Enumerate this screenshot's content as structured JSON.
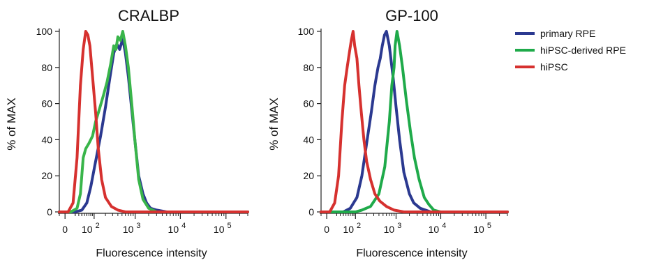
{
  "chart_data": [
    {
      "type": "line",
      "title": "CRALBP",
      "xlabel": "Fluorescence intensity",
      "ylabel": "% of MAX",
      "x_scale": "biexponential",
      "xlim": [
        -10,
        300000
      ],
      "ylim": [
        0,
        100
      ],
      "yticks": [
        0,
        20,
        40,
        60,
        80,
        100
      ],
      "xticks": [
        {
          "value": 0,
          "label": "0",
          "exp": ""
        },
        {
          "value": 100,
          "label": "10",
          "exp": "2"
        },
        {
          "value": 1000,
          "label": "10",
          "exp": "3"
        },
        {
          "value": 10000,
          "label": "10",
          "exp": "4"
        },
        {
          "value": 100000,
          "label": "10",
          "exp": "5"
        }
      ],
      "series": [
        {
          "name": "primary RPE",
          "color": "#2b3990",
          "points": [
            [
              -10,
              0
            ],
            [
              20,
              0
            ],
            [
              40,
              1
            ],
            [
              60,
              5
            ],
            [
              80,
              14
            ],
            [
              110,
              28
            ],
            [
              150,
              42
            ],
            [
              200,
              58
            ],
            [
              260,
              75
            ],
            [
              320,
              88
            ],
            [
              380,
              93
            ],
            [
              440,
              90
            ],
            [
              520,
              96
            ],
            [
              600,
              88
            ],
            [
              700,
              75
            ],
            [
              850,
              55
            ],
            [
              1000,
              38
            ],
            [
              1200,
              20
            ],
            [
              1500,
              10
            ],
            [
              1800,
              5
            ],
            [
              2200,
              2
            ],
            [
              3000,
              1
            ],
            [
              5000,
              0
            ],
            [
              300000,
              0
            ]
          ]
        },
        {
          "name": "hiPSC-derived RPE",
          "color": "#39b54a",
          "points": [
            [
              -10,
              0
            ],
            [
              10,
              0
            ],
            [
              25,
              2
            ],
            [
              35,
              10
            ],
            [
              45,
              30
            ],
            [
              55,
              35
            ],
            [
              70,
              38
            ],
            [
              90,
              42
            ],
            [
              110,
              50
            ],
            [
              140,
              57
            ],
            [
              180,
              65
            ],
            [
              220,
              72
            ],
            [
              270,
              82
            ],
            [
              320,
              92
            ],
            [
              360,
              90
            ],
            [
              400,
              97
            ],
            [
              460,
              95
            ],
            [
              520,
              100
            ],
            [
              600,
              92
            ],
            [
              700,
              80
            ],
            [
              850,
              58
            ],
            [
              1000,
              38
            ],
            [
              1200,
              18
            ],
            [
              1500,
              7
            ],
            [
              2000,
              2
            ],
            [
              3000,
              0
            ],
            [
              300000,
              0
            ]
          ]
        },
        {
          "name": "hiPSC",
          "color": "#d6312f",
          "points": [
            [
              -10,
              0
            ],
            [
              5,
              0
            ],
            [
              15,
              5
            ],
            [
              25,
              30
            ],
            [
              35,
              70
            ],
            [
              45,
              90
            ],
            [
              55,
              100
            ],
            [
              65,
              98
            ],
            [
              75,
              92
            ],
            [
              90,
              75
            ],
            [
              110,
              55
            ],
            [
              130,
              35
            ],
            [
              160,
              18
            ],
            [
              200,
              8
            ],
            [
              280,
              3
            ],
            [
              400,
              1
            ],
            [
              600,
              0
            ],
            [
              300000,
              0
            ]
          ]
        }
      ]
    },
    {
      "type": "line",
      "title": "GP-100",
      "xlabel": "Fluorescence intensity",
      "ylabel": "% of MAX",
      "x_scale": "biexponential",
      "xlim": [
        -10,
        300000
      ],
      "ylim": [
        0,
        100
      ],
      "yticks": [
        0,
        20,
        40,
        60,
        80,
        100
      ],
      "xticks": [
        {
          "value": 0,
          "label": "0",
          "exp": ""
        },
        {
          "value": 100,
          "label": "10",
          "exp": "2"
        },
        {
          "value": 1000,
          "label": "10",
          "exp": "3"
        },
        {
          "value": 10000,
          "label": "10",
          "exp": "4"
        },
        {
          "value": 100000,
          "label": "10",
          "exp": "5"
        }
      ],
      "legend": {
        "position": "top-right",
        "entries": [
          "primary RPE",
          "hiPSC-derived RPE",
          "hiPSC"
        ]
      },
      "series": [
        {
          "name": "primary RPE",
          "color": "#2b3990",
          "points": [
            [
              -10,
              0
            ],
            [
              40,
              0
            ],
            [
              70,
              2
            ],
            [
              110,
              8
            ],
            [
              150,
              20
            ],
            [
              200,
              38
            ],
            [
              260,
              55
            ],
            [
              320,
              70
            ],
            [
              380,
              80
            ],
            [
              430,
              85
            ],
            [
              480,
              92
            ],
            [
              540,
              98
            ],
            [
              600,
              100
            ],
            [
              700,
              92
            ],
            [
              850,
              75
            ],
            [
              1000,
              58
            ],
            [
              1200,
              40
            ],
            [
              1500,
              22
            ],
            [
              2000,
              10
            ],
            [
              2500,
              5
            ],
            [
              3500,
              2
            ],
            [
              6000,
              0
            ],
            [
              300000,
              0
            ]
          ]
        },
        {
          "name": "hiPSC-derived RPE",
          "color": "#1faa4a",
          "points": [
            [
              -10,
              0
            ],
            [
              100,
              0
            ],
            [
              150,
              1
            ],
            [
              250,
              3
            ],
            [
              400,
              10
            ],
            [
              550,
              25
            ],
            [
              700,
              50
            ],
            [
              800,
              70
            ],
            [
              900,
              80
            ],
            [
              950,
              92
            ],
            [
              1050,
              100
            ],
            [
              1200,
              92
            ],
            [
              1400,
              80
            ],
            [
              1700,
              62
            ],
            [
              2100,
              45
            ],
            [
              2600,
              30
            ],
            [
              3300,
              18
            ],
            [
              4300,
              8
            ],
            [
              5500,
              4
            ],
            [
              7000,
              1
            ],
            [
              10000,
              0
            ],
            [
              300000,
              0
            ]
          ]
        },
        {
          "name": "hiPSC",
          "color": "#d6312f",
          "points": [
            [
              -10,
              0
            ],
            [
              5,
              0
            ],
            [
              15,
              5
            ],
            [
              25,
              20
            ],
            [
              35,
              50
            ],
            [
              45,
              70
            ],
            [
              55,
              80
            ],
            [
              65,
              88
            ],
            [
              75,
              95
            ],
            [
              85,
              100
            ],
            [
              95,
              92
            ],
            [
              110,
              85
            ],
            [
              125,
              70
            ],
            [
              145,
              55
            ],
            [
              170,
              40
            ],
            [
              200,
              28
            ],
            [
              250,
              18
            ],
            [
              320,
              10
            ],
            [
              420,
              6
            ],
            [
              600,
              3
            ],
            [
              900,
              1
            ],
            [
              1500,
              0
            ],
            [
              300000,
              0
            ]
          ]
        }
      ]
    }
  ]
}
